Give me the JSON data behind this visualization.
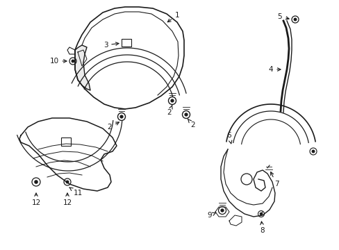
{
  "background_color": "#ffffff",
  "line_color": "#1a1a1a",
  "fig_width": 4.89,
  "fig_height": 3.6,
  "dpi": 100,
  "font_size": 7.5,
  "lw": 1.0
}
